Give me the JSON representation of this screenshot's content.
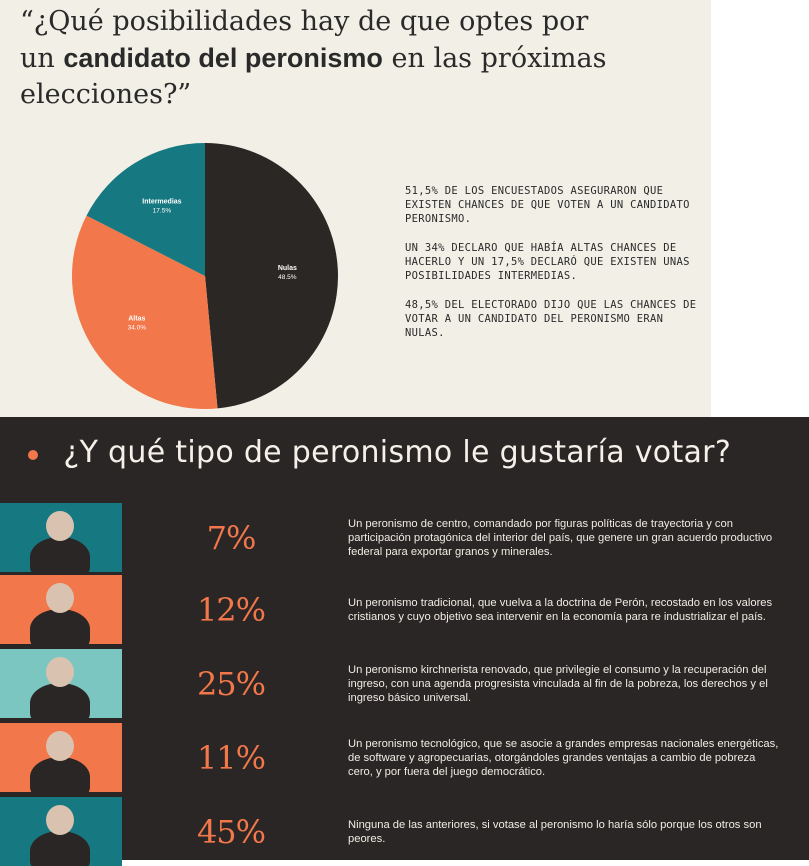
{
  "header": {
    "title_part1": "“¿Qué posibilidades hay de que optes por un ",
    "title_bold": "candidato del peronismo",
    "title_part2": " en las próximas elecciones?”"
  },
  "chart_data": {
    "type": "pie",
    "slices": [
      {
        "label": "Nulas",
        "value": 48.5,
        "value_label": "48.5%",
        "color": "#2b2725"
      },
      {
        "label": "Altas",
        "value": 34.0,
        "value_label": "34.0%",
        "color": "#f2774a"
      },
      {
        "label": "Intermedias",
        "value": 17.5,
        "value_label": "17.5%",
        "color": "#167880"
      }
    ]
  },
  "summary": [
    "51,5% DE LOS ENCUESTADOS ASEGURARON QUE EXISTEN CHANCES DE QUE VOTEN A UN CANDIDATO PERONISMO.",
    "UN 34% DECLARO QUE HABÍA ALTAS CHANCES DE HACERLO Y UN 17,5% DECLARÓ QUE EXISTEN UNAS POSIBILIDADES INTERMEDIAS.",
    "48,5% DEL ELECTORADO DIJO QUE LAS CHANCES DE VOTAR A UN CANDIDATO DEL PERONISMO ERAN NULAS."
  ],
  "section": {
    "title": "¿Y qué tipo de peronismo le gustaría votar?",
    "accent": "#f2774a"
  },
  "options": [
    {
      "pct": "7%",
      "value": 7,
      "thumb_color": "#167880",
      "text": "Un peronismo de centro, comandado por figuras políticas de trayectoria y con participación protagónica del interior del país, que genere un gran acuerdo productivo federal para exportar granos y minerales."
    },
    {
      "pct": "12%",
      "value": 12,
      "thumb_color": "#f2774a",
      "text": "Un peronismo tradicional, que vuelva a la doctrina de Perón, recostado en los valores cristianos y cuyo objetivo sea intervenir en la economía para re industrializar el país."
    },
    {
      "pct": "25%",
      "value": 25,
      "thumb_color": "#7cc6c1",
      "text": "Un peronismo kirchnerista renovado, que privilegie el consumo y la recuperación del ingreso, con una agenda progresista vinculada al fin de la pobreza, los derechos y el ingreso básico universal."
    },
    {
      "pct": "11%",
      "value": 11,
      "thumb_color": "#f2774a",
      "text": "Un peronismo tecnológico, que se asocie a grandes empresas nacionales energéticas, de software y agropecuarias, otorgándoles grandes ventajas a cambio de pobreza cero, y por fuera del juego democrático."
    },
    {
      "pct": "45%",
      "value": 45,
      "thumb_color": "#167880",
      "text": "Ninguna de las anteriores, si votase al peronismo lo haría sólo porque los otros son peores."
    }
  ]
}
